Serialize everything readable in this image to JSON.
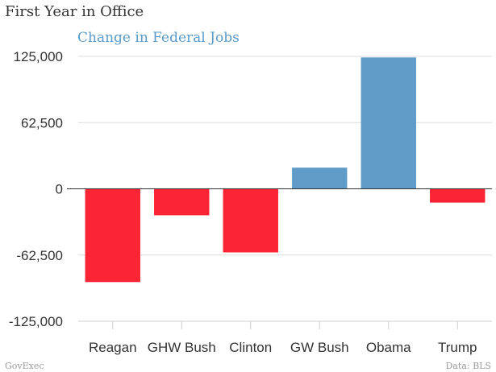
{
  "chart_data": {
    "type": "bar",
    "title": "First Year in Office",
    "legend": [
      "Change in Federal Jobs"
    ],
    "categories": [
      "Reagan",
      "GHW Bush",
      "Clinton",
      "GW Bush",
      "Obama",
      "Trump"
    ],
    "series": [
      {
        "name": "Change in Federal Jobs",
        "values": [
          -88000,
          -25000,
          -60000,
          20000,
          124000,
          -13000
        ]
      }
    ],
    "colors": {
      "positive": "#619cc9",
      "negative": "#fb2434"
    },
    "yticks": [
      "125,000",
      "62,500",
      "0",
      "-62,500",
      "-125,000"
    ],
    "ylim": [
      -125000,
      125000
    ],
    "grid": true,
    "legend_position": "top-left"
  },
  "footer": {
    "source_left": "GovExec",
    "source_right": "Data: BLS"
  }
}
